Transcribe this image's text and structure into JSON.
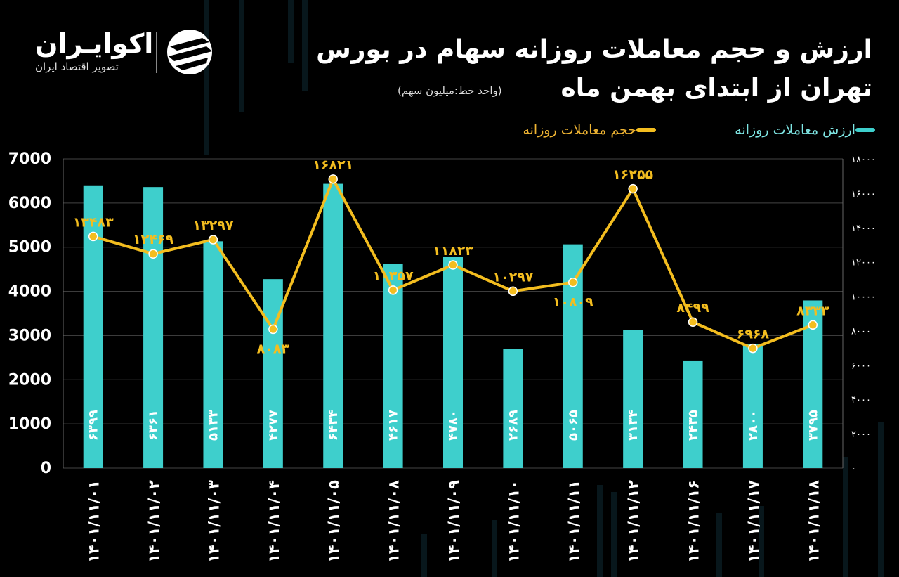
{
  "brand": {
    "name": "اکوایـران",
    "tagline": "تصویر اقتصاد ایران"
  },
  "header": {
    "title_line1": "ارزش و حجم معاملات روزانه سهام در بورس",
    "title_line2": "تهران از ابتدای بهمن ماه",
    "unit_note": "(واحد خط:میلیون سهم)"
  },
  "legend": {
    "value_label": "ارزش معاملات روزانه",
    "volume_label": "حجم معاملات روزانه"
  },
  "colors": {
    "bar": "#3ecfcc",
    "line": "#f3bd1f",
    "background": "#000000",
    "grid": "#444444"
  },
  "chart_data": {
    "type": "bar",
    "categories": [
      "۱۴۰۱/۱۱/۰۱",
      "۱۴۰۱/۱۱/۰۲",
      "۱۴۰۱/۱۱/۰۳",
      "۱۴۰۱/۱۱/۰۴",
      "۱۴۰۱/۱۱/۰۵",
      "۱۴۰۱/۱۱/۰۸",
      "۱۴۰۱/۱۱/۰۹",
      "۱۴۰۱/۱۱/۱۰",
      "۱۴۰۱/۱۱/۱۱",
      "۱۴۰۱/۱۱/۱۲",
      "۱۴۰۱/۱۱/۱۶",
      "۱۴۰۱/۱۱/۱۷",
      "۱۴۰۱/۱۱/۱۸"
    ],
    "series": [
      {
        "name": "ارزش معاملات روزانه",
        "type": "bar",
        "axis": "left",
        "values": [
          6399,
          6361,
          5133,
          4277,
          6434,
          4617,
          4780,
          2689,
          5065,
          3134,
          2435,
          2800,
          3795
        ],
        "labels": [
          "۶۳۹۹",
          "۶۳۶۱",
          "۵۱۳۳",
          "۴۲۷۷",
          "۶۴۳۴",
          "۴۶۱۷",
          "۴۷۸۰",
          "۲۶۸۹",
          "۵۰۶۵",
          "۳۱۳۴",
          "۲۴۳۵",
          "۲۸۰۰",
          "۳۷۹۵"
        ]
      },
      {
        "name": "حجم معاملات روزانه",
        "type": "line",
        "axis": "right",
        "values": [
          13483,
          12469,
          13297,
          8083,
          16821,
          10357,
          11823,
          10297,
          10809,
          16255,
          8499,
          6968,
          8333
        ],
        "labels": [
          "۱۳۴۸۳",
          "۱۲۴۶۹",
          "۱۳۲۹۷",
          "۸۰۸۳",
          "۱۶۸۲۱",
          "۱۰۳۵۷",
          "۱۱۸۲۳",
          "۱۰۲۹۷",
          "۱۰۸۰۹",
          "۱۶۲۵۵",
          "۸۴۹۹",
          "۶۹۶۸",
          "۸۳۳۳"
        ]
      }
    ],
    "y_left": {
      "range": [
        0,
        7000
      ],
      "ticks": [
        0,
        1000,
        2000,
        3000,
        4000,
        5000,
        6000,
        7000
      ],
      "tick_labels": [
        "0",
        "1000",
        "2000",
        "3000",
        "4000",
        "5000",
        "6000",
        "7000"
      ]
    },
    "y_right": {
      "range": [
        0,
        18000
      ],
      "ticks": [
        0,
        2000,
        4000,
        6000,
        8000,
        10000,
        12000,
        14000,
        16000,
        18000
      ],
      "tick_labels": [
        "۰",
        "۲۰۰۰",
        "۴۰۰۰",
        "۶۰۰۰",
        "۸۰۰۰",
        "۱۰۰۰۰",
        "۱۲۰۰۰",
        "۱۴۰۰۰",
        "۱۶۰۰۰",
        "۱۸۰۰۰"
      ]
    },
    "grid": true,
    "legend_position": "top-right"
  }
}
